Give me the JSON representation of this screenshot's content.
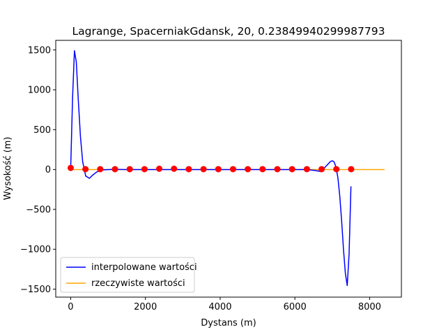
{
  "chart_data": {
    "type": "line",
    "title": "Lagrange, SpacerniakGdansk, 20, 0.23849940299987793",
    "xlabel": "Dystans (m)",
    "ylabel": "Wysokość (m)",
    "xlim": [
      -400,
      8850
    ],
    "ylim": [
      -1600,
      1620
    ],
    "xticks": [
      0,
      2000,
      4000,
      6000,
      8000
    ],
    "yticks": [
      -1500,
      -1000,
      -500,
      0,
      500,
      1000,
      1500
    ],
    "legend": {
      "placement": "lower-left"
    },
    "grid": false,
    "series": [
      {
        "name": "interpolowane wartości",
        "color": "#0000ff",
        "style": "line",
        "x": [
          0,
          50,
          100,
          150,
          200,
          260,
          320,
          400,
          500,
          600,
          700,
          800,
          900,
          1000,
          1200,
          1500,
          2000,
          2500,
          3000,
          3500,
          4000,
          4500,
          5000,
          5500,
          6000,
          6300,
          6500,
          6700,
          6850,
          6950,
          7000,
          7050,
          7100,
          7150,
          7200,
          7250,
          7300,
          7350,
          7400,
          7450,
          7500
        ],
        "y": [
          20,
          900,
          1490,
          1350,
          900,
          420,
          100,
          -80,
          -110,
          -65,
          -30,
          -10,
          -3,
          0,
          2,
          0,
          0,
          0,
          0,
          0,
          0,
          0,
          0,
          0,
          0,
          0,
          -10,
          -25,
          50,
          100,
          110,
          95,
          30,
          -100,
          -330,
          -640,
          -1000,
          -1300,
          -1455,
          -1060,
          -210
        ]
      },
      {
        "name": "rzeczywiste wartości",
        "color": "#ffa500",
        "style": "line",
        "x": [
          0,
          8400
        ],
        "y": [
          0,
          0
        ]
      },
      {
        "name": "",
        "color": "#ff0000",
        "style": "markers",
        "x": [
          0,
          395,
          790,
          1185,
          1580,
          1975,
          2370,
          2765,
          3160,
          3555,
          3950,
          4345,
          4740,
          5135,
          5530,
          5925,
          6320,
          6715,
          7110,
          7505
        ],
        "y": [
          20,
          5,
          5,
          5,
          5,
          5,
          10,
          10,
          5,
          5,
          5,
          5,
          5,
          5,
          5,
          5,
          5,
          5,
          5,
          5
        ]
      }
    ]
  }
}
